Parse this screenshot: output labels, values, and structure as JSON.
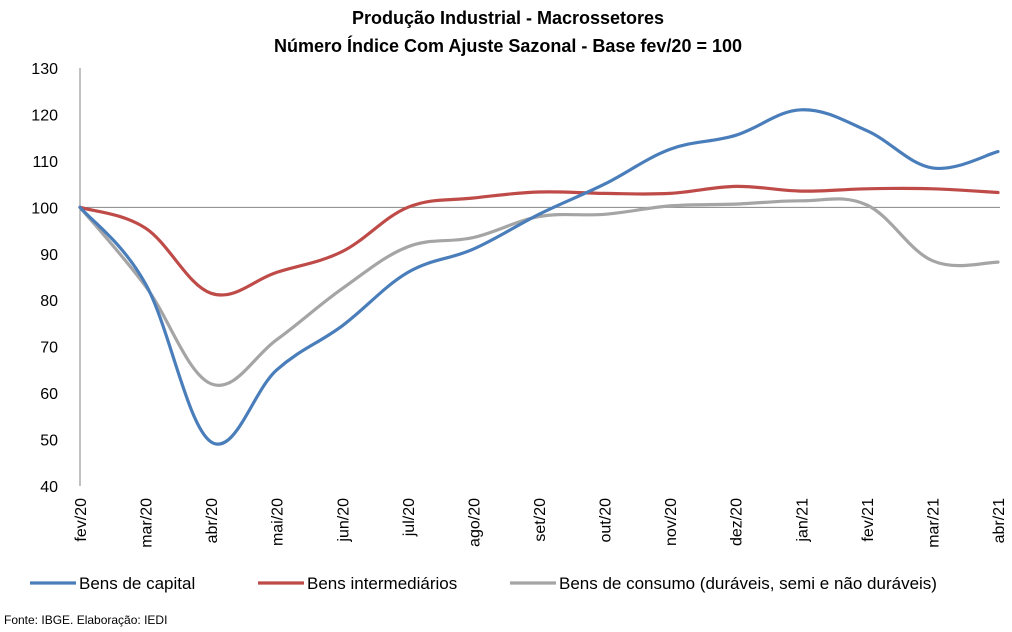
{
  "chart_data": {
    "type": "line",
    "title": "Produção Industrial - Macrossetores",
    "subtitle": "Número Índice Com Ajuste Sazonal - Base fev/20 = 100",
    "xlabel": "",
    "ylabel": "",
    "categories": [
      "fev/20",
      "mar/20",
      "abr/20",
      "mai/20",
      "jun/20",
      "jul/20",
      "ago/20",
      "set/20",
      "out/20",
      "nov/20",
      "dez/20",
      "jan/21",
      "fev/21",
      "mar/21",
      "abr/21"
    ],
    "ylim": [
      40,
      130
    ],
    "yticks": [
      "40",
      "50",
      "60",
      "70",
      "80",
      "90",
      "100",
      "110",
      "120",
      "130"
    ],
    "reference_line": 100,
    "grid": false,
    "legend_position": "bottom",
    "series": [
      {
        "name": "Bens de capital",
        "color": "#4a7ebb",
        "values": [
          100,
          83.5,
          49.5,
          65,
          74.5,
          86,
          91,
          98.5,
          105,
          112.5,
          115.5,
          121,
          116.5,
          108.5,
          112
        ]
      },
      {
        "name": "Bens intermediários",
        "color": "#be4b48",
        "values": [
          100,
          95.5,
          81.5,
          86,
          90.5,
          100,
          102,
          103.3,
          103,
          103,
          104.5,
          103.5,
          104,
          104,
          103.2
        ]
      },
      {
        "name": "Bens de consumo (duráveis, semi e não duráveis)",
        "color": "#a5a5a5",
        "values": [
          100,
          83,
          62,
          71.5,
          82.5,
          91.5,
          93.5,
          98,
          98.5,
          100.3,
          100.7,
          101.4,
          100.5,
          88.5,
          88.2
        ]
      }
    ],
    "source": "Fonte: IBGE. Elaboração: IEDI"
  }
}
